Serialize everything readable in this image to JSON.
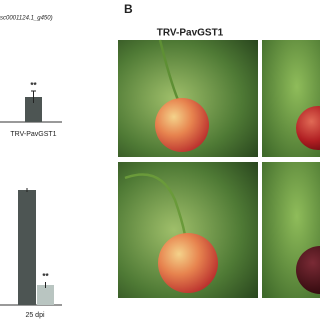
{
  "header": {
    "gene_id": "sc0001124.1_g450)",
    "panel_label": "B",
    "photo_column_label": "TRV-PavGST1"
  },
  "chart_top": {
    "significance": "**",
    "x_label": "TRV-PavGST1"
  },
  "chart_bottom": {
    "significance": "**",
    "x_label": "25 dpi"
  }
}
